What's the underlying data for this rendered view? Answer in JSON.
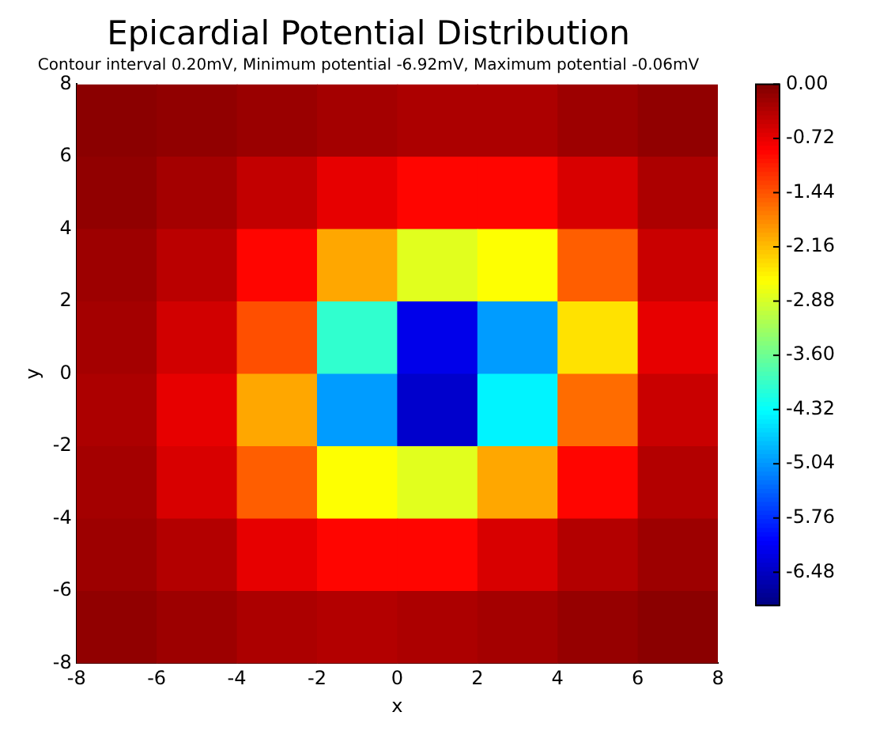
{
  "chart_data": {
    "type": "heatmap",
    "title": "Epicardial Potential Distribution",
    "subtitle": "Contour interval 0.20mV, Minimum potential -6.92mV, Maximum potential -0.06mV",
    "xlabel": "x",
    "ylabel": "y",
    "x": [
      -7,
      -5,
      -3,
      -1,
      1,
      3,
      5,
      7
    ],
    "y": [
      7,
      5,
      3,
      1,
      -1,
      -3,
      -5,
      -7
    ],
    "cells": [
      [
        -0.08,
        -0.12,
        -0.18,
        -0.25,
        -0.3,
        -0.3,
        -0.2,
        -0.12
      ],
      [
        -0.12,
        -0.25,
        -0.45,
        -0.7,
        -0.9,
        -0.9,
        -0.6,
        -0.3
      ],
      [
        -0.2,
        -0.4,
        -0.9,
        -2.0,
        -2.8,
        -2.6,
        -1.5,
        -0.5
      ],
      [
        -0.25,
        -0.55,
        -1.4,
        -4.0,
        -6.2,
        -5.0,
        -2.4,
        -0.7
      ],
      [
        -0.3,
        -0.7,
        -2.0,
        -5.0,
        -6.4,
        -4.4,
        -1.6,
        -0.5
      ],
      [
        -0.25,
        -0.6,
        -1.5,
        -2.6,
        -2.8,
        -2.0,
        -0.9,
        -0.35
      ],
      [
        -0.2,
        -0.35,
        -0.7,
        -0.9,
        -0.9,
        -0.6,
        -0.35,
        -0.2
      ],
      [
        -0.12,
        -0.2,
        -0.3,
        -0.35,
        -0.3,
        -0.25,
        -0.15,
        -0.08
      ]
    ],
    "xlim": [
      -8,
      8
    ],
    "ylim": [
      -8,
      8
    ],
    "xticks": [
      -8,
      -6,
      -4,
      -2,
      0,
      2,
      4,
      6,
      8
    ],
    "yticks": [
      -8,
      -6,
      -4,
      -2,
      0,
      2,
      4,
      6,
      8
    ],
    "clim": [
      -6.92,
      0
    ],
    "cticks": [
      {
        "value": 0,
        "label": "0.00"
      },
      {
        "value": -0.72,
        "label": "-0.72"
      },
      {
        "value": -1.44,
        "label": "-1.44"
      },
      {
        "value": -2.16,
        "label": "-2.16"
      },
      {
        "value": -2.88,
        "label": "-2.88"
      },
      {
        "value": -3.6,
        "label": "-3.60"
      },
      {
        "value": -4.32,
        "label": "-4.32"
      },
      {
        "value": -5.04,
        "label": "-5.04"
      },
      {
        "value": -5.76,
        "label": "-5.76"
      },
      {
        "value": -6.48,
        "label": "-6.48"
      }
    ]
  }
}
